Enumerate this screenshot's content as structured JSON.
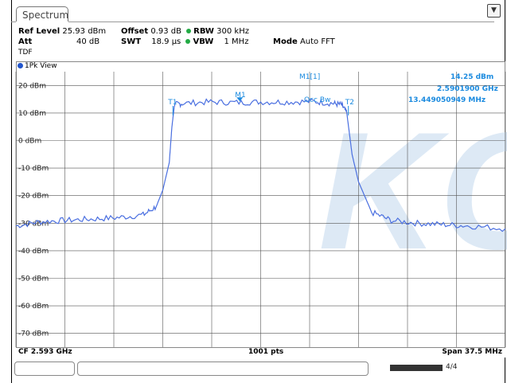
{
  "window": {
    "tab_label": "Spectrum",
    "top_icon": "settings-icon"
  },
  "settings": {
    "ref_level_label": "Ref Level",
    "ref_level_value": "25.93 dBm",
    "offset_label": "Offset",
    "offset_value": "0.93 dB",
    "rbw_label": "RBW",
    "rbw_value": "300 kHz",
    "att_label": "Att",
    "att_value": "40 dB",
    "swt_label": "SWT",
    "swt_value": "18.9 µs",
    "vbw_label": "VBW",
    "vbw_value": "1 MHz",
    "mode_label": "Mode",
    "mode_value": "Auto FFT",
    "tdf": "TDF",
    "indicator_color": "#22aa44"
  },
  "view": {
    "label": "1Pk View",
    "trace_color": "#4a6fe0",
    "accent_color": "#1a8adf"
  },
  "marker": {
    "name": "M1[1]",
    "level": "14.25 dBm",
    "freq": "2.5901900 GHz",
    "occ_bw_label": "Occ Bw",
    "occ_bw_value": "13.449050949 MHz",
    "t1": "T1",
    "t2": "T2",
    "m1": "M1"
  },
  "axis": {
    "y_labels": [
      "20 dBm",
      "10 dBm",
      "0 dBm",
      "-10 dBm",
      "-20 dBm",
      "-30 dBm",
      "-40 dBm",
      "-50 dBm",
      "-60 dBm",
      "-70 dBm"
    ]
  },
  "footer": {
    "cf": "CF 2.593 GHz",
    "pts": "1001 pts",
    "span": "Span 37.5 MHz",
    "status_text": "4/4",
    "watermark_text": "KC"
  },
  "chart_data": {
    "type": "line",
    "xlabel": "",
    "ylabel": "",
    "x_center_ghz": 2.593,
    "span_mhz": 37.5,
    "ylim": [
      -75,
      25
    ],
    "grid": true,
    "series": [
      {
        "x_mhz": [
          -18.75,
          -17,
          -15,
          -13,
          -11,
          -9,
          -8,
          -7.5,
          -7,
          -6.8,
          -6.6,
          -6,
          -4,
          -2,
          0,
          2,
          4,
          5.5,
          6.2,
          6.6,
          7,
          7.5,
          8.5,
          10,
          12,
          14,
          16,
          18.75
        ],
        "y": [
          -31,
          -29.5,
          -29,
          -28.5,
          -28,
          -27,
          -24,
          -18,
          -8,
          5,
          13,
          13.5,
          14,
          13.8,
          14,
          14,
          14.2,
          13.5,
          13,
          10,
          -5,
          -15,
          -26,
          -29,
          -30,
          -30.5,
          -31,
          -32
        ]
      }
    ]
  }
}
